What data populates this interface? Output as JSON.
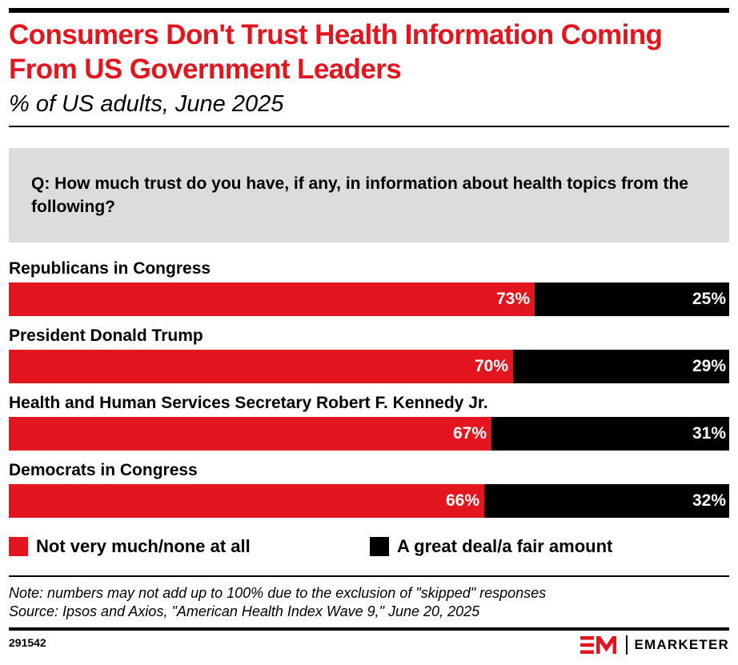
{
  "header": {
    "title": "Consumers Don't Trust Health Information Coming From US Government Leaders",
    "subtitle": "% of US adults, June 2025",
    "question": "Q: How much trust do you have, if any, in information about health topics from the following?"
  },
  "colors": {
    "accent": "#e3161f",
    "secondary": "#000000",
    "question_bg": "#dcdcdc"
  },
  "chart_data": {
    "type": "bar",
    "orientation": "horizontal",
    "stacked": true,
    "title": "Consumers Don't Trust Health Information Coming From US Government Leaders",
    "subtitle": "% of US adults, June 2025",
    "categories": [
      "Republicans in Congress",
      "President Donald Trump",
      "Health and Human Services Secretary Robert F. Kennedy Jr.",
      "Democrats in Congress"
    ],
    "series": [
      {
        "name": "Not very much/none at all",
        "color": "#e3161f",
        "values": [
          73,
          70,
          67,
          66
        ],
        "labels": [
          "73%",
          "70%",
          "67%",
          "66%"
        ]
      },
      {
        "name": "A great deal/a fair amount",
        "color": "#000000",
        "values": [
          25,
          29,
          31,
          32
        ],
        "labels": [
          "25%",
          "29%",
          "31%",
          "32%"
        ]
      }
    ],
    "xlim": [
      0,
      100
    ],
    "grid": false,
    "legend_position": "bottom"
  },
  "legend": {
    "items": [
      {
        "label": "Not very much/none at all",
        "color": "#e3161f"
      },
      {
        "label": "A great deal/a fair amount",
        "color": "#000000"
      }
    ]
  },
  "footer": {
    "note": "Note: numbers may not add up to 100% due to the exclusion of \"skipped\" responses",
    "source": "Source: Ipsos and Axios, \"American Health Index Wave 9,\" June 20, 2025",
    "chart_id": "291542",
    "brand": "EMARKETER"
  }
}
